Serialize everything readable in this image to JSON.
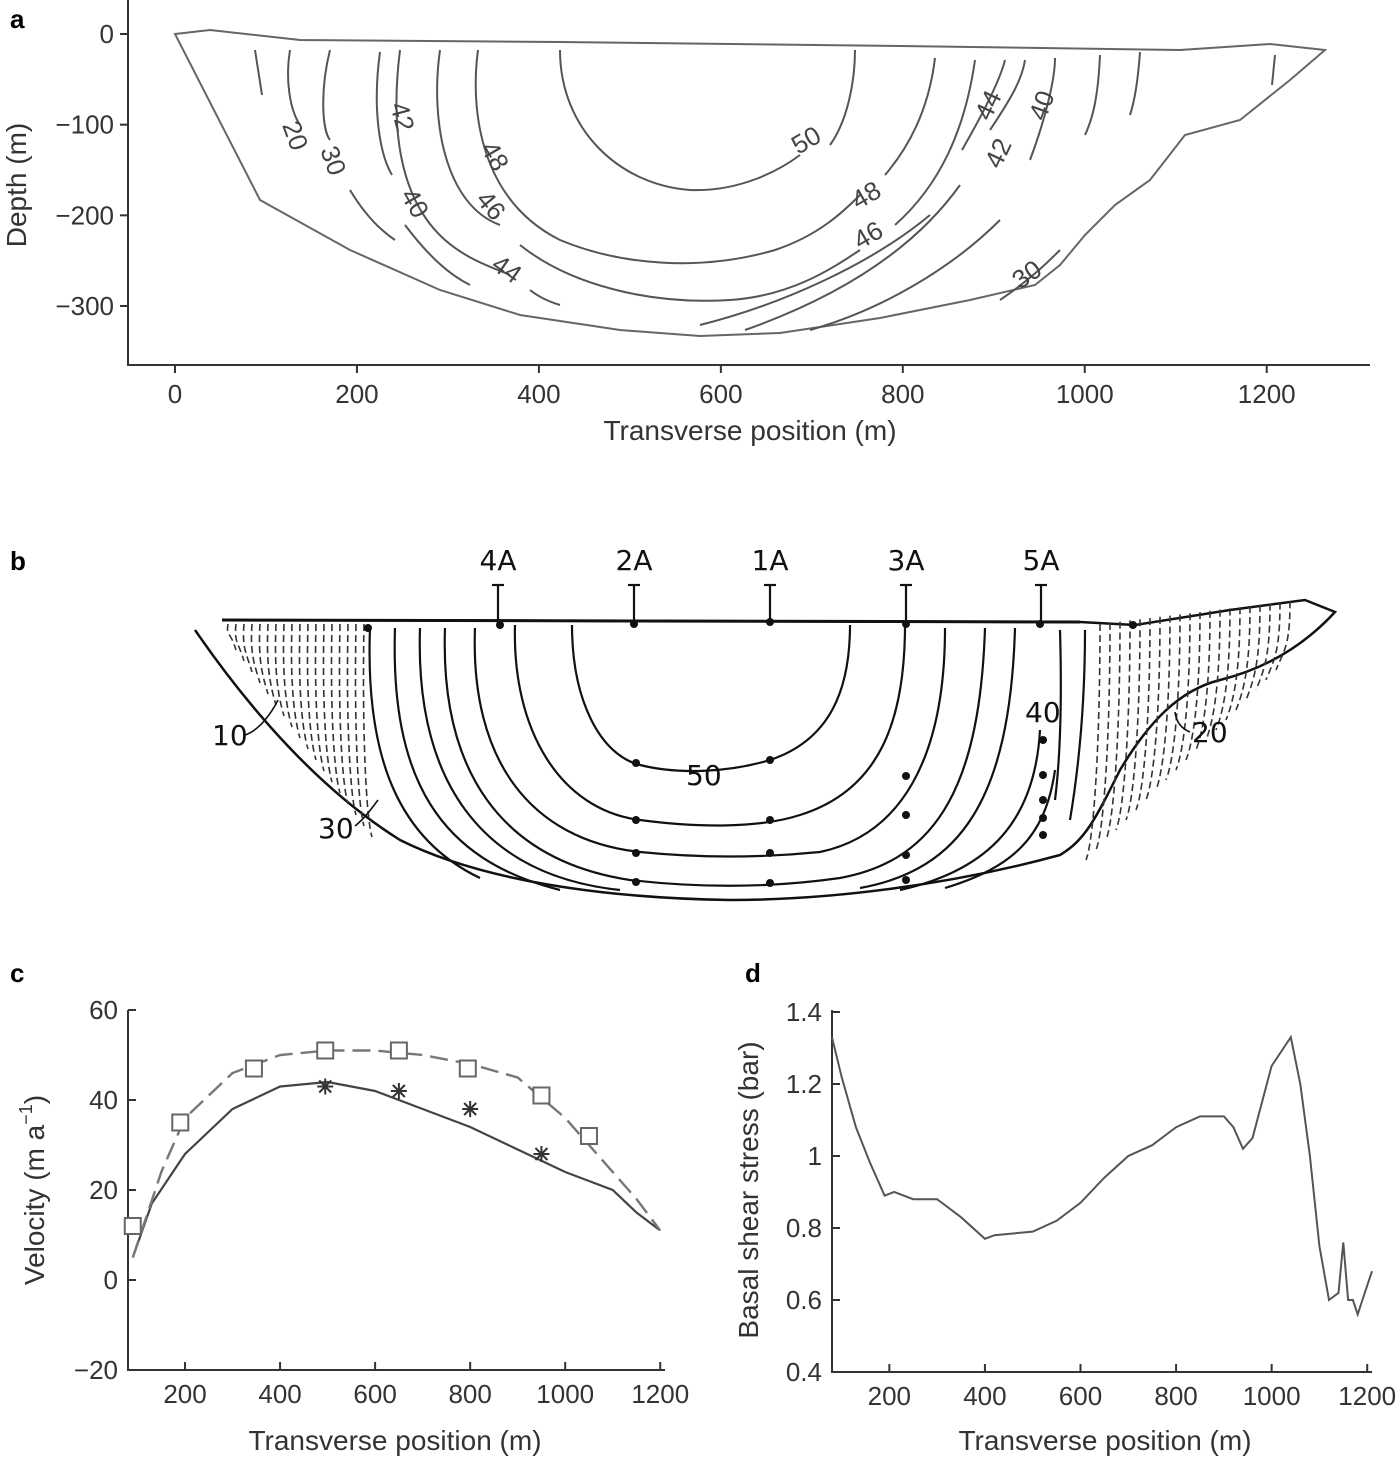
{
  "panels": {
    "a": {
      "label": "a",
      "xlabel": "Transverse position (m)",
      "ylabel": "Depth (m)",
      "xticks": [
        0,
        200,
        400,
        600,
        800,
        1000,
        1200
      ],
      "yticks": [
        0,
        -100,
        -200,
        -300
      ],
      "xlim": [
        -50,
        1310
      ],
      "ylim": [
        -360,
        30
      ]
    },
    "b": {
      "label": "b",
      "stakes": [
        "4A",
        "2A",
        "1A",
        "3A",
        "5A"
      ],
      "contour_labels": [
        "10",
        "30",
        "40",
        "50",
        "20"
      ]
    },
    "c": {
      "label": "c",
      "xlabel": "Transverse position (m)",
      "ylabel": "Velocity (m a",
      "ylabel_sup": "−1",
      "ylabel_end": ")",
      "xticks": [
        200,
        400,
        600,
        800,
        1000,
        1200
      ],
      "yticks": [
        60,
        40,
        20,
        0,
        -20
      ],
      "xlim": [
        80,
        1210
      ],
      "ylim": [
        -20,
        60
      ]
    },
    "d": {
      "label": "d",
      "xlabel": "Transverse position (m)",
      "ylabel": "Basal shear stress (bar)",
      "xticks": [
        200,
        400,
        600,
        800,
        1000,
        1200
      ],
      "yticks": [
        1.4,
        1.2,
        1,
        0.8,
        0.6,
        0.4
      ],
      "xlim": [
        80,
        1210
      ],
      "ylim": [
        0.4,
        1.4
      ]
    }
  },
  "chart_data": [
    {
      "type": "contour",
      "panel": "a",
      "xlabel": "Transverse position (m)",
      "ylabel": "Depth (m)",
      "contour_levels": [
        20,
        30,
        40,
        42,
        44,
        46,
        48,
        50
      ],
      "surface": [
        [
          0,
          0
        ],
        [
          40,
          1
        ],
        [
          150,
          -6
        ],
        [
          400,
          -8
        ],
        [
          600,
          -12
        ],
        [
          800,
          -14
        ],
        [
          1000,
          -18
        ],
        [
          1150,
          -20
        ],
        [
          1210,
          -12
        ],
        [
          1265,
          -16
        ],
        [
          1240,
          -40
        ],
        [
          1180,
          -100
        ],
        [
          1130,
          -120
        ],
        [
          1080,
          -170
        ],
        [
          1040,
          -250
        ],
        [
          990,
          -275
        ],
        [
          900,
          -300
        ],
        [
          800,
          -320
        ],
        [
          700,
          -330
        ],
        [
          600,
          -330
        ],
        [
          500,
          -316
        ],
        [
          350,
          -270
        ],
        [
          190,
          -200
        ],
        [
          100,
          -120
        ],
        [
          0,
          0
        ]
      ],
      "xlim": [
        -50,
        1310
      ],
      "ylim": [
        -360,
        30
      ]
    },
    {
      "type": "contour",
      "panel": "b",
      "contour_labels": [
        10,
        20,
        30,
        40,
        50
      ],
      "stakes": [
        "4A",
        "2A",
        "1A",
        "3A",
        "5A"
      ]
    },
    {
      "type": "line",
      "panel": "c",
      "xlabel": "Transverse position (m)",
      "ylabel": "Velocity (m a−1)",
      "xlim": [
        80,
        1210
      ],
      "ylim": [
        -20,
        60
      ],
      "series": [
        {
          "style": "solid",
          "x": [
            90,
            130,
            200,
            300,
            400,
            500,
            600,
            700,
            800,
            900,
            1000,
            1050,
            1100,
            1150,
            1200
          ],
          "y": [
            5,
            17,
            28,
            38,
            43,
            44,
            42,
            38,
            34,
            29,
            24,
            22,
            20,
            15,
            11
          ]
        },
        {
          "style": "dashed",
          "x": [
            90,
            150,
            200,
            300,
            400,
            500,
            600,
            700,
            800,
            900,
            1000,
            1050,
            1100,
            1150,
            1200
          ],
          "y": [
            5,
            24,
            36,
            46,
            50,
            51,
            51,
            50,
            48,
            45,
            36,
            30,
            24,
            18,
            11
          ]
        },
        {
          "style": "squares",
          "x": [
            90,
            190,
            345,
            495,
            650,
            795,
            950,
            1050
          ],
          "y": [
            12,
            35,
            47,
            51,
            51,
            47,
            41,
            32
          ]
        },
        {
          "style": "stars",
          "x": [
            495,
            650,
            800,
            950
          ],
          "y": [
            43,
            42,
            38,
            28
          ]
        }
      ]
    },
    {
      "type": "line",
      "panel": "d",
      "xlabel": "Transverse position (m)",
      "ylabel": "Basal shear stress (bar)",
      "xlim": [
        80,
        1210
      ],
      "ylim": [
        0.4,
        1.4
      ],
      "series": [
        {
          "x": [
            80,
            100,
            130,
            160,
            190,
            210,
            250,
            300,
            350,
            400,
            420,
            500,
            550,
            600,
            650,
            700,
            750,
            800,
            850,
            900,
            920,
            940,
            960,
            1000,
            1040,
            1060,
            1080,
            1100,
            1120,
            1140,
            1150,
            1160,
            1170,
            1180,
            1190,
            1210
          ],
          "y": [
            1.33,
            1.22,
            1.08,
            0.98,
            0.89,
            0.9,
            0.88,
            0.88,
            0.83,
            0.77,
            0.78,
            0.79,
            0.82,
            0.87,
            0.94,
            1.0,
            1.03,
            1.08,
            1.11,
            1.11,
            1.08,
            1.02,
            1.05,
            1.25,
            1.33,
            1.2,
            1.0,
            0.75,
            0.6,
            0.62,
            0.76,
            0.6,
            0.6,
            0.56,
            0.6,
            0.68
          ]
        }
      ]
    }
  ]
}
